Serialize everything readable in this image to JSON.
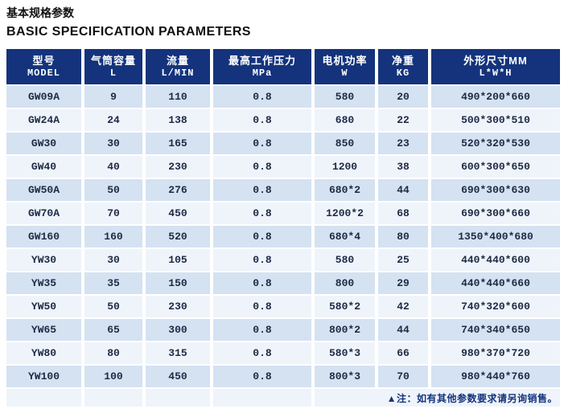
{
  "page": {
    "title_cn": "基本规格参数",
    "title_en": "BASIC SPECIFICATION PARAMETERS"
  },
  "table": {
    "columns": [
      {
        "key": "model",
        "cn": "型号",
        "sub": "MODEL"
      },
      {
        "key": "capacity",
        "cn": "气筒容量",
        "sub": "L"
      },
      {
        "key": "flow",
        "cn": "流量",
        "sub": "L/MIN"
      },
      {
        "key": "pressure",
        "cn": "最高工作压力",
        "sub": "MPa"
      },
      {
        "key": "power",
        "cn": "电机功率",
        "sub": "W"
      },
      {
        "key": "weight",
        "cn": "净重",
        "sub": "KG"
      },
      {
        "key": "dimensions",
        "cn": "外形尺寸MM",
        "sub": "L*W*H"
      }
    ],
    "rows": [
      [
        "GW09A",
        "9",
        "110",
        "0.8",
        "580",
        "20",
        "490*200*660"
      ],
      [
        "GW24A",
        "24",
        "138",
        "0.8",
        "680",
        "22",
        "500*300*510"
      ],
      [
        "GW30",
        "30",
        "165",
        "0.8",
        "850",
        "23",
        "520*320*530"
      ],
      [
        "GW40",
        "40",
        "230",
        "0.8",
        "1200",
        "38",
        "600*300*650"
      ],
      [
        "GW50A",
        "50",
        "276",
        "0.8",
        "680*2",
        "44",
        "690*300*630"
      ],
      [
        "GW70A",
        "70",
        "450",
        "0.8",
        "1200*2",
        "68",
        "690*300*660"
      ],
      [
        "GW160",
        "160",
        "520",
        "0.8",
        "680*4",
        "80",
        "1350*400*680"
      ],
      [
        "YW30",
        "30",
        "105",
        "0.8",
        "580",
        "25",
        "440*440*600"
      ],
      [
        "YW35",
        "35",
        "150",
        "0.8",
        "800",
        "29",
        "440*440*660"
      ],
      [
        "YW50",
        "50",
        "230",
        "0.8",
        "580*2",
        "42",
        "740*320*600"
      ],
      [
        "YW65",
        "65",
        "300",
        "0.8",
        "800*2",
        "44",
        "740*340*650"
      ],
      [
        "YW80",
        "80",
        "315",
        "0.8",
        "580*3",
        "66",
        "980*370*720"
      ],
      [
        "YW100",
        "100",
        "450",
        "0.8",
        "800*3",
        "70",
        "980*440*760"
      ]
    ],
    "footnote": "▲注：如有其他参数要求请另询销售。"
  },
  "colors": {
    "header_bg": "#14337C",
    "row_blue": "#D4E2F2",
    "row_white": "#EFF4FB",
    "cell_text": "#1D2A44",
    "note_text": "#14337C",
    "title_text": "#111111"
  }
}
